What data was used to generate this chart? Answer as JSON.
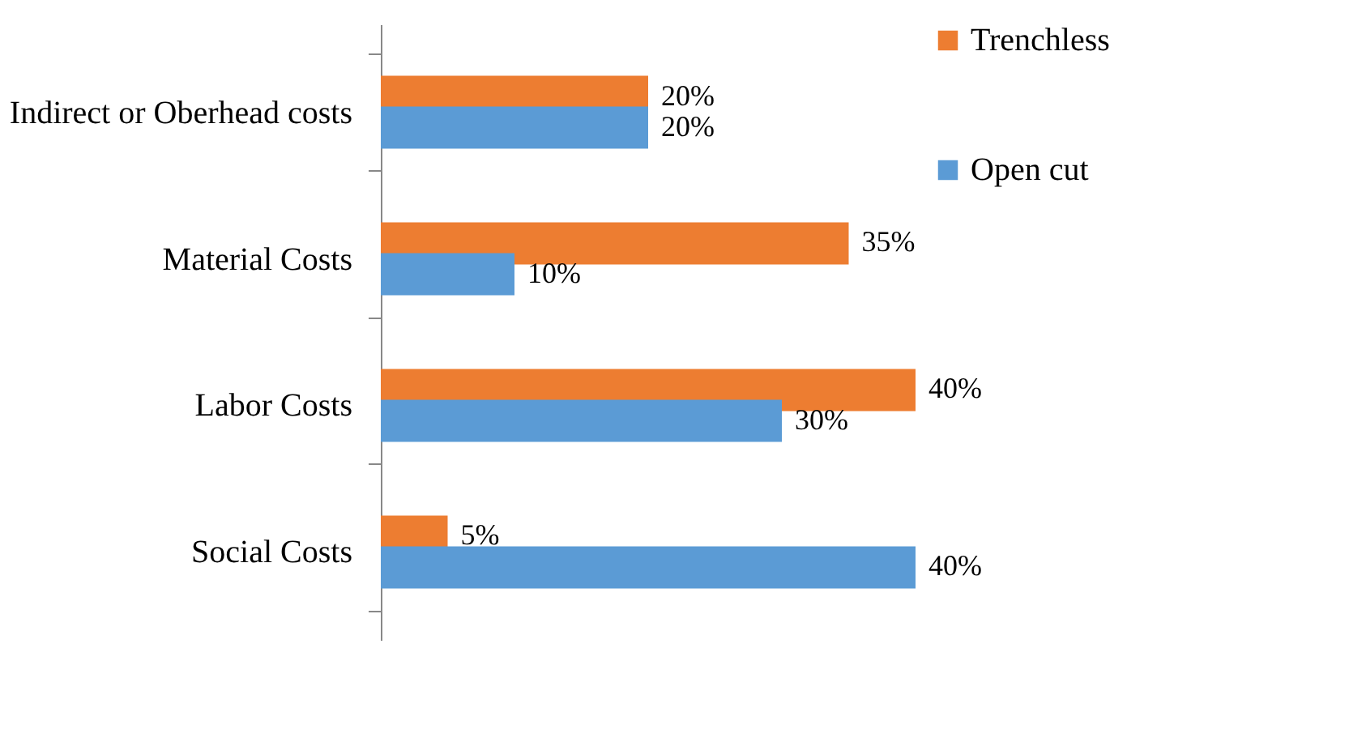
{
  "chart_data": {
    "type": "bar",
    "orientation": "horizontal",
    "categories": [
      "Indirect or Oberhead costs",
      "Material Costs",
      "Labor Costs",
      "Social Costs"
    ],
    "series": [
      {
        "name": "Trenchless",
        "color": "#ed7d31",
        "values": [
          20,
          35,
          40,
          5
        ],
        "value_labels": [
          "20%",
          "35%",
          "40%",
          "5%"
        ]
      },
      {
        "name": "Open cut",
        "color": "#5b9bd5",
        "values": [
          20,
          10,
          30,
          40
        ],
        "value_labels": [
          "20%",
          "10%",
          "30%",
          "40%"
        ]
      }
    ],
    "legend": "right",
    "grid": false
  }
}
